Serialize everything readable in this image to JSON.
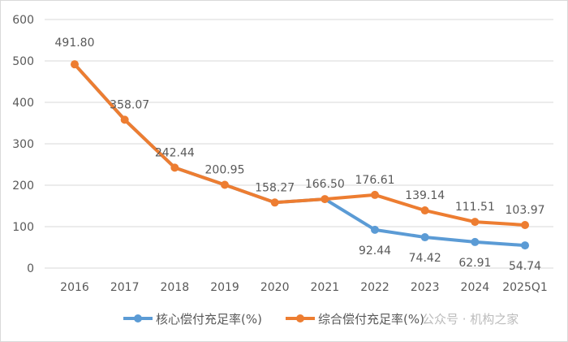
{
  "chart_data": {
    "type": "line",
    "categories": [
      "2016",
      "2017",
      "2018",
      "2019",
      "2020",
      "2021",
      "2022",
      "2023",
      "2024",
      "2025Q1"
    ],
    "series": [
      {
        "name": "核心偿付充足率(%)",
        "color": "#5b9bd5",
        "values": [
          491.8,
          358.07,
          242.44,
          200.95,
          158.27,
          166.5,
          92.44,
          74.42,
          62.91,
          54.74
        ]
      },
      {
        "name": "综合偿付充足率(%)",
        "color": "#ed7d31",
        "values": [
          491.8,
          358.07,
          242.44,
          200.95,
          158.27,
          166.5,
          176.61,
          139.14,
          111.51,
          103.97
        ]
      }
    ],
    "data_labels": [
      "491.80",
      "358.07",
      "242.44",
      "200.95",
      "158.27",
      "166.50",
      "176.61",
      "139.14",
      "111.51",
      "103.97",
      "92.44",
      "74.42",
      "62.91",
      "54.74"
    ],
    "ylim": [
      0,
      600
    ],
    "yticks": [
      0,
      100,
      200,
      300,
      400,
      500,
      600
    ],
    "grid": true,
    "legend": "bottom"
  },
  "watermark": "公众号 · 机构之家"
}
